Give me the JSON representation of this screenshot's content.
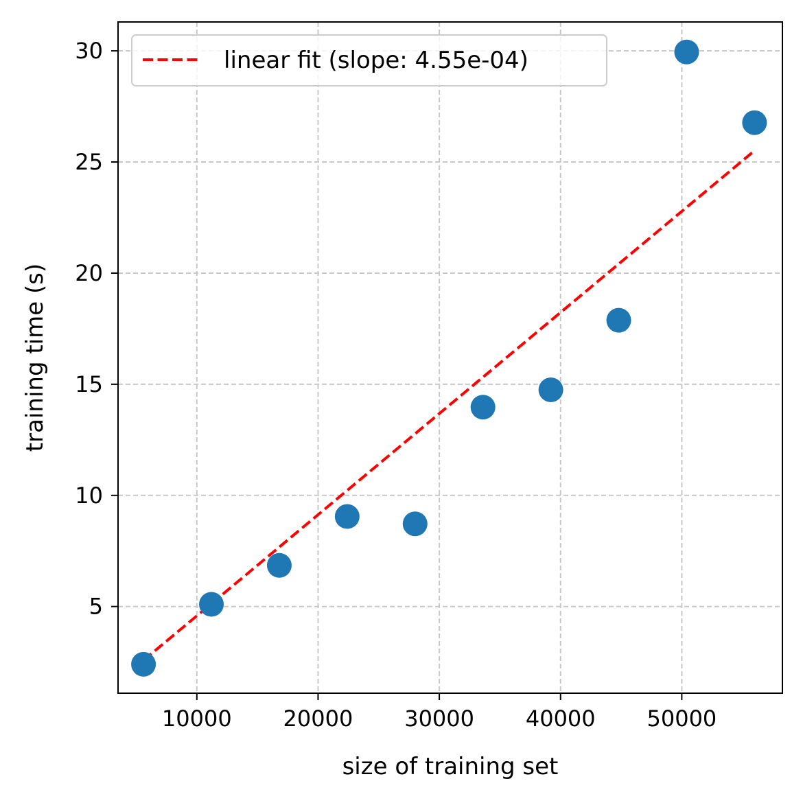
{
  "chart_data": {
    "type": "scatter",
    "title": "",
    "xlabel": "size of training set",
    "ylabel": "training time (s)",
    "xlim": [
      3500,
      58300
    ],
    "ylim": [
      1.1,
      31.3
    ],
    "xticks": [
      10000,
      20000,
      30000,
      40000,
      50000
    ],
    "yticks": [
      5,
      10,
      15,
      20,
      25,
      30
    ],
    "grid": true,
    "legend_position": "upper-left",
    "series": [
      {
        "type": "scatter",
        "color": "#1f77b4",
        "x": [
          5600,
          11200,
          16800,
          22400,
          28000,
          33600,
          39200,
          44800,
          50400,
          56000
        ],
        "y": [
          2.4,
          5.1,
          6.85,
          9.05,
          8.72,
          13.97,
          14.75,
          17.88,
          29.95,
          26.77
        ]
      },
      {
        "type": "line",
        "name": "linear fit (slope: 4.55e-04)",
        "color": "#ff0000",
        "dash": "dashed",
        "x": [
          5600,
          56000
        ],
        "y": [
          2.58,
          25.51
        ]
      }
    ]
  }
}
